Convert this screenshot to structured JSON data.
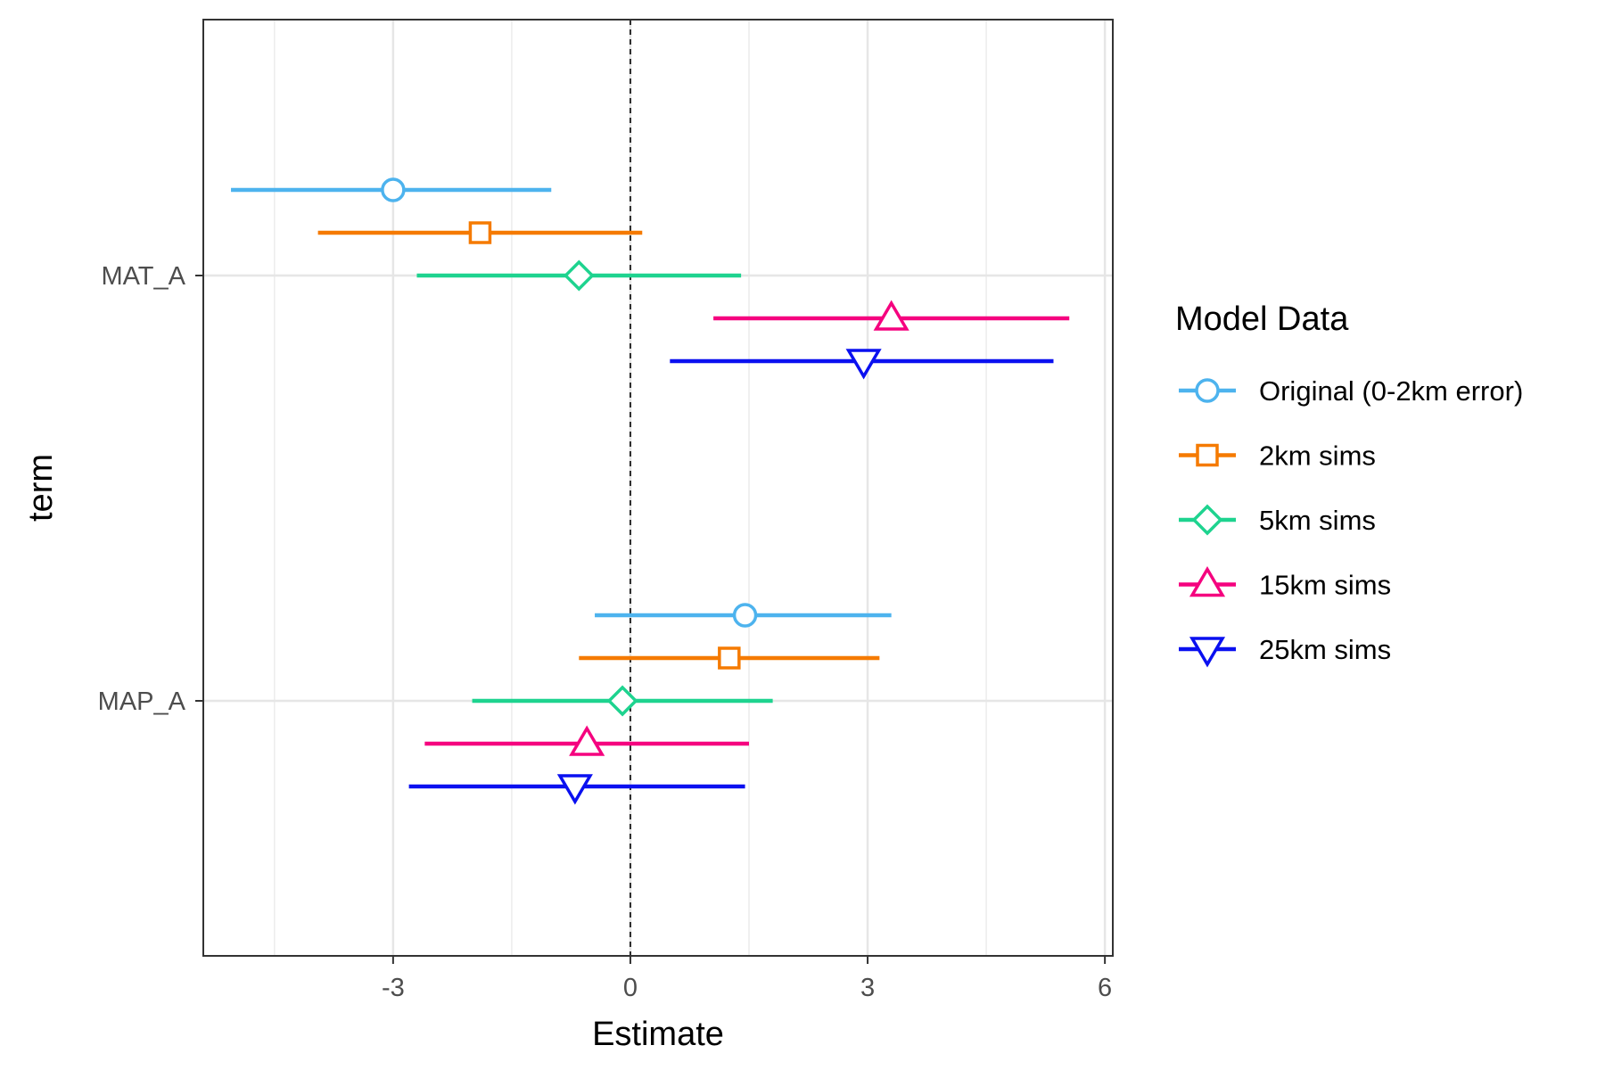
{
  "chart_data": {
    "type": "dot-whisker",
    "xlabel": "Estimate",
    "ylabel": "term",
    "xlim": [
      -5.4,
      6.1
    ],
    "x_ticks": [
      -3,
      0,
      3,
      6
    ],
    "x_tick_labels": [
      "-3",
      "0",
      "3",
      "6"
    ],
    "reference_line_x": 0,
    "grid": true,
    "terms": [
      "MAT_A",
      "MAP_A"
    ],
    "legend": {
      "title": "Model Data",
      "placement": "right"
    },
    "series": [
      {
        "name": "Original (0-2km error)",
        "color": "#4db3ee",
        "shape": "circle",
        "points": [
          {
            "term": "MAT_A",
            "estimate": -3.0,
            "low": -5.05,
            "high": -1.0
          },
          {
            "term": "MAP_A",
            "estimate": 1.45,
            "low": -0.45,
            "high": 3.3
          }
        ]
      },
      {
        "name": "2km sims",
        "color": "#f57a00",
        "shape": "square",
        "points": [
          {
            "term": "MAT_A",
            "estimate": -1.9,
            "low": -3.95,
            "high": 0.15
          },
          {
            "term": "MAP_A",
            "estimate": 1.25,
            "low": -0.65,
            "high": 3.15
          }
        ]
      },
      {
        "name": "5km sims",
        "color": "#1ed38f",
        "shape": "diamond",
        "points": [
          {
            "term": "MAT_A",
            "estimate": -0.65,
            "low": -2.7,
            "high": 1.4
          },
          {
            "term": "MAP_A",
            "estimate": -0.1,
            "low": -2.0,
            "high": 1.8
          }
        ]
      },
      {
        "name": "15km sims",
        "color": "#f5027f",
        "shape": "triangle-up",
        "points": [
          {
            "term": "MAT_A",
            "estimate": 3.3,
            "low": 1.05,
            "high": 5.55
          },
          {
            "term": "MAP_A",
            "estimate": -0.55,
            "low": -2.6,
            "high": 1.5
          }
        ]
      },
      {
        "name": "25km  sims",
        "color": "#0a10f0",
        "shape": "triangle-down",
        "points": [
          {
            "term": "MAT_A",
            "estimate": 2.95,
            "low": 0.5,
            "high": 5.35
          },
          {
            "term": "MAP_A",
            "estimate": -0.7,
            "low": -2.8,
            "high": 1.45
          }
        ]
      }
    ]
  }
}
